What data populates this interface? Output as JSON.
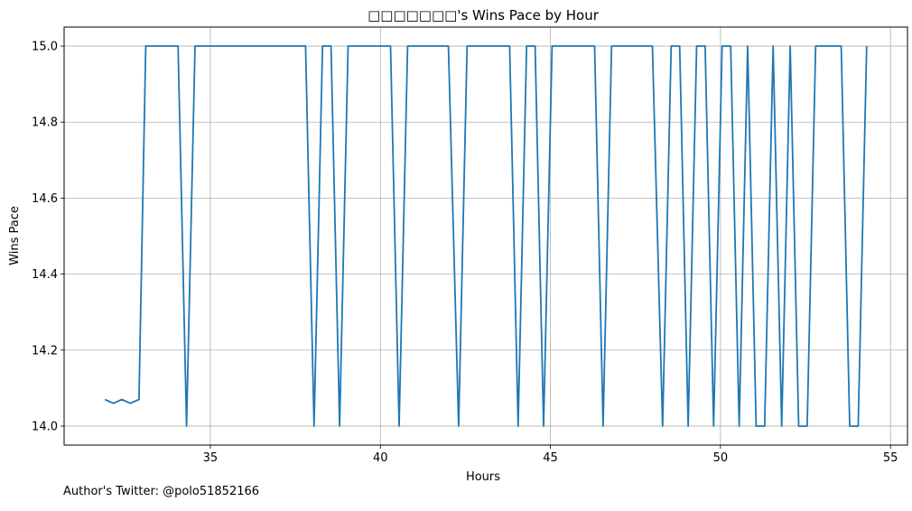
{
  "chart_data": {
    "type": "line",
    "title": "□□□□□□□'s Wins Pace by Hour",
    "xlabel": "Hours",
    "ylabel": "Wins Pace",
    "xlim": [
      30.7,
      55.5
    ],
    "ylim": [
      13.95,
      15.05
    ],
    "xticks": [
      35,
      40,
      45,
      50,
      55
    ],
    "yticks": [
      14.0,
      14.2,
      14.4,
      14.6,
      14.8,
      15.0
    ],
    "xtick_labels": [
      "35",
      "40",
      "45",
      "50",
      "55"
    ],
    "ytick_labels": [
      "14.0",
      "14.2",
      "14.4",
      "14.6",
      "14.8",
      "15.0"
    ],
    "grid": true,
    "line_color": "#1f77b4",
    "series": [
      {
        "x": [
          31.9,
          32.15,
          32.4,
          32.65,
          32.9,
          33.1,
          33.4,
          33.7,
          34.05,
          34.3,
          34.55,
          34.8,
          35.5,
          36.5,
          37.0,
          37.8,
          38.05,
          38.3,
          38.55,
          38.8,
          39.05,
          39.5,
          40.3,
          40.55,
          40.8,
          41.2,
          42.0,
          42.3,
          42.55,
          43.0,
          43.8,
          44.05,
          44.3,
          44.55,
          44.8,
          45.05,
          45.5,
          46.3,
          46.55,
          46.8,
          47.2,
          48.0,
          48.3,
          48.55,
          48.8,
          49.05,
          49.3,
          49.55,
          49.8,
          50.05,
          50.3,
          50.55,
          50.8,
          51.05,
          51.3,
          51.55,
          51.8,
          52.05,
          52.3,
          52.55,
          52.8,
          53.2,
          53.55,
          53.8,
          54.05,
          54.3
        ],
        "values": [
          14.07,
          14.06,
          14.07,
          14.06,
          14.07,
          15.0,
          15.0,
          15.0,
          15.0,
          14.0,
          15.0,
          15.0,
          15.0,
          15.0,
          15.0,
          15.0,
          14.0,
          15.0,
          15.0,
          14.0,
          15.0,
          15.0,
          15.0,
          14.0,
          15.0,
          15.0,
          15.0,
          14.0,
          15.0,
          15.0,
          15.0,
          14.0,
          15.0,
          15.0,
          14.0,
          15.0,
          15.0,
          15.0,
          14.0,
          15.0,
          15.0,
          15.0,
          14.0,
          15.0,
          15.0,
          14.0,
          15.0,
          15.0,
          14.0,
          15.0,
          15.0,
          14.0,
          15.0,
          14.0,
          14.0,
          15.0,
          14.0,
          15.0,
          14.0,
          14.0,
          15.0,
          15.0,
          15.0,
          14.0,
          14.0,
          15.0
        ]
      }
    ]
  },
  "footer": {
    "text": "Author's Twitter: @polo51852166"
  }
}
